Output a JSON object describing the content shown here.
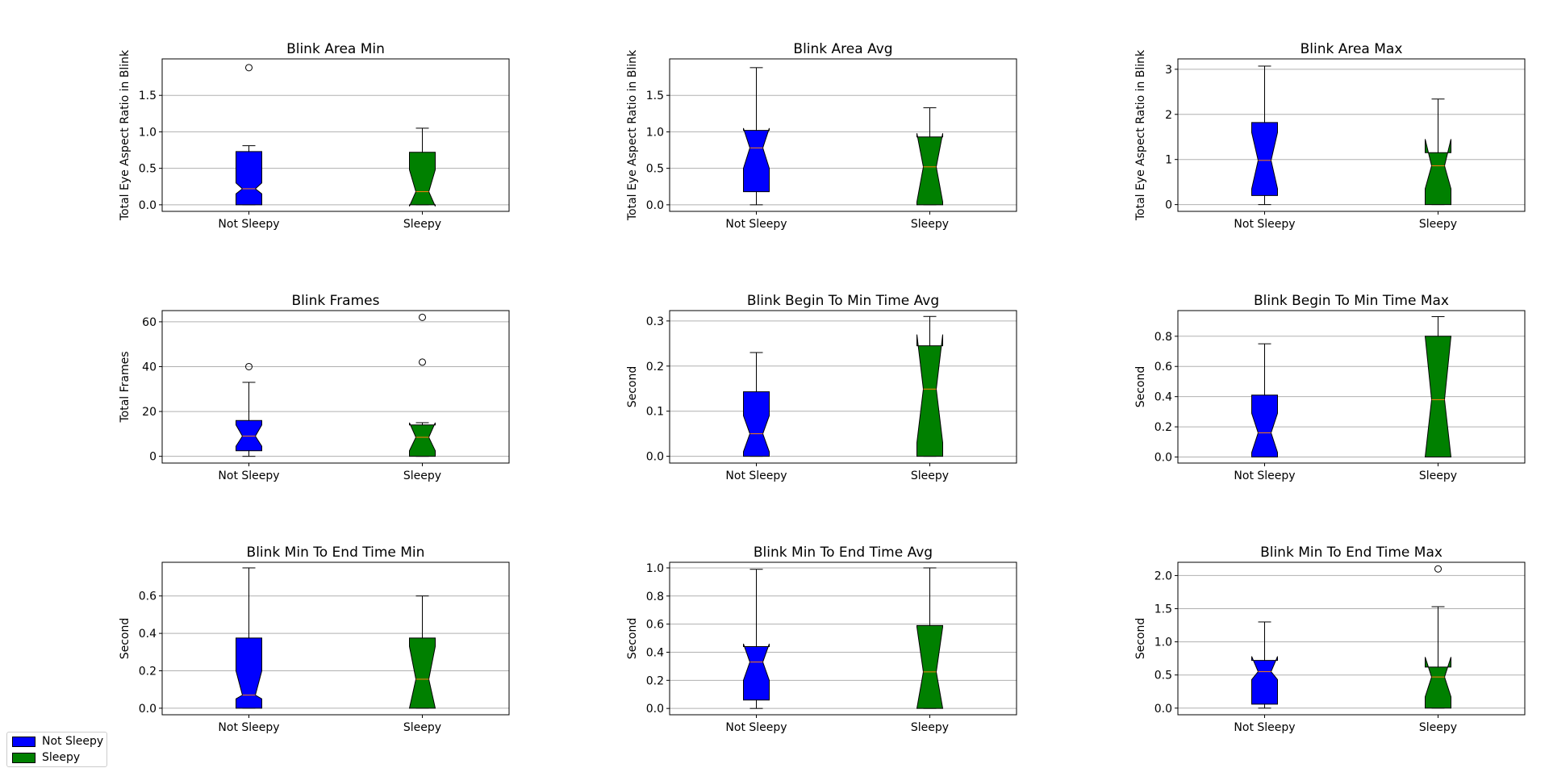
{
  "legend": {
    "items": [
      {
        "label": "Not Sleepy",
        "color": "#0000ff"
      },
      {
        "label": "Sleepy",
        "color": "#008000"
      }
    ]
  },
  "chart_data": [
    {
      "type": "boxplot",
      "title": "Blink Area Min",
      "ylabel": "Total Eye Aspect Ratio in Blink",
      "categories": [
        "Not Sleepy",
        "Sleepy"
      ],
      "colors": [
        "#0000ff",
        "#008000"
      ],
      "ylim": [
        -0.09,
        2.0
      ],
      "yticks": [
        0.0,
        0.5,
        1.0,
        1.5
      ],
      "ytick_labels": [
        "0.0",
        "0.5",
        "1.0",
        "1.5"
      ],
      "grid": "y",
      "boxes": [
        {
          "whislo": 0.0,
          "q1": 0.0,
          "med": 0.22,
          "q3": 0.73,
          "whishi": 0.81,
          "notch_lo": 0.15,
          "notch_hi": 0.3,
          "fliers": [
            1.88
          ]
        },
        {
          "whislo": 0.0,
          "q1": 0.0,
          "med": 0.18,
          "q3": 0.72,
          "whishi": 1.05,
          "notch_lo": -0.02,
          "notch_hi": 0.48,
          "fliers": []
        }
      ]
    },
    {
      "type": "boxplot",
      "title": "Blink Area Avg",
      "ylabel": "Total Eye Aspect Ratio in Blink",
      "categories": [
        "Not Sleepy",
        "Sleepy"
      ],
      "colors": [
        "#0000ff",
        "#008000"
      ],
      "ylim": [
        -0.09,
        2.0
      ],
      "yticks": [
        0.0,
        0.5,
        1.0,
        1.5
      ],
      "ytick_labels": [
        "0.0",
        "0.5",
        "1.0",
        "1.5"
      ],
      "grid": "y",
      "boxes": [
        {
          "whislo": 0.0,
          "q1": 0.18,
          "med": 0.78,
          "q3": 1.02,
          "whishi": 1.88,
          "notch_lo": 0.5,
          "notch_hi": 1.05,
          "fliers": []
        },
        {
          "whislo": 0.0,
          "q1": 0.0,
          "med": 0.52,
          "q3": 0.93,
          "whishi": 1.33,
          "notch_lo": 0.04,
          "notch_hi": 0.98,
          "fliers": []
        }
      ]
    },
    {
      "type": "boxplot",
      "title": "Blink Area Max",
      "ylabel": "Total Eye Aspect Ratio in Blink",
      "categories": [
        "Not Sleepy",
        "Sleepy"
      ],
      "colors": [
        "#0000ff",
        "#008000"
      ],
      "ylim": [
        -0.15,
        3.23
      ],
      "yticks": [
        0,
        1,
        2,
        3
      ],
      "ytick_labels": [
        "0",
        "1",
        "2",
        "3"
      ],
      "grid": "y",
      "boxes": [
        {
          "whislo": 0.0,
          "q1": 0.2,
          "med": 0.98,
          "q3": 1.82,
          "whishi": 3.07,
          "notch_lo": 0.35,
          "notch_hi": 1.6,
          "fliers": []
        },
        {
          "whislo": 0.0,
          "q1": 0.0,
          "med": 0.86,
          "q3": 1.15,
          "whishi": 2.34,
          "notch_lo": 0.35,
          "notch_hi": 1.45,
          "fliers": []
        }
      ]
    },
    {
      "type": "boxplot",
      "title": "Blink Frames",
      "ylabel": "Total Frames",
      "categories": [
        "Not Sleepy",
        "Sleepy"
      ],
      "colors": [
        "#0000ff",
        "#008000"
      ],
      "ylim": [
        -3,
        65
      ],
      "yticks": [
        0,
        20,
        40,
        60
      ],
      "ytick_labels": [
        "0",
        "20",
        "40",
        "60"
      ],
      "grid": "y",
      "boxes": [
        {
          "whislo": 0,
          "q1": 2.5,
          "med": 9,
          "q3": 16,
          "whishi": 33,
          "notch_lo": 4.5,
          "notch_hi": 14,
          "fliers": [
            40
          ]
        },
        {
          "whislo": 0,
          "q1": 0,
          "med": 8.5,
          "q3": 14,
          "whishi": 15,
          "notch_lo": 2.5,
          "notch_hi": 15,
          "fliers": [
            62,
            42
          ]
        }
      ]
    },
    {
      "type": "boxplot",
      "title": "Blink Begin To Min Time Avg",
      "ylabel": "Second",
      "categories": [
        "Not Sleepy",
        "Sleepy"
      ],
      "colors": [
        "#0000ff",
        "#008000"
      ],
      "ylim": [
        -0.015,
        0.323
      ],
      "yticks": [
        0.0,
        0.1,
        0.2,
        0.3
      ],
      "ytick_labels": [
        "0.0",
        "0.1",
        "0.2",
        "0.3"
      ],
      "grid": "y",
      "boxes": [
        {
          "whislo": 0.0,
          "q1": 0.0,
          "med": 0.05,
          "q3": 0.143,
          "whishi": 0.23,
          "notch_lo": 0.01,
          "notch_hi": 0.09,
          "fliers": []
        },
        {
          "whislo": 0.0,
          "q1": 0.0,
          "med": 0.149,
          "q3": 0.245,
          "whishi": 0.31,
          "notch_lo": 0.03,
          "notch_hi": 0.27,
          "fliers": []
        }
      ]
    },
    {
      "type": "boxplot",
      "title": "Blink Begin To Min Time Max",
      "ylabel": "Second",
      "categories": [
        "Not Sleepy",
        "Sleepy"
      ],
      "colors": [
        "#0000ff",
        "#008000"
      ],
      "ylim": [
        -0.04,
        0.97
      ],
      "yticks": [
        0.0,
        0.2,
        0.4,
        0.6,
        0.8
      ],
      "ytick_labels": [
        "0.0",
        "0.2",
        "0.4",
        "0.6",
        "0.8"
      ],
      "grid": "y",
      "boxes": [
        {
          "whislo": 0.0,
          "q1": 0.0,
          "med": 0.16,
          "q3": 0.41,
          "whishi": 0.75,
          "notch_lo": 0.03,
          "notch_hi": 0.29,
          "fliers": []
        },
        {
          "whislo": 0.0,
          "q1": 0.0,
          "med": 0.38,
          "q3": 0.8,
          "whishi": 0.93,
          "notch_lo": 0.0,
          "notch_hi": 0.8,
          "fliers": []
        }
      ]
    },
    {
      "type": "boxplot",
      "title": "Blink Min To End Time Min",
      "ylabel": "Second",
      "categories": [
        "Not Sleepy",
        "Sleepy"
      ],
      "colors": [
        "#0000ff",
        "#008000"
      ],
      "ylim": [
        -0.035,
        0.78
      ],
      "yticks": [
        0.0,
        0.2,
        0.4,
        0.6
      ],
      "ytick_labels": [
        "0.0",
        "0.2",
        "0.4",
        "0.6"
      ],
      "grid": "y",
      "boxes": [
        {
          "whislo": 0.0,
          "q1": 0.0,
          "med": 0.07,
          "q3": 0.375,
          "whishi": 0.75,
          "notch_lo": 0.05,
          "notch_hi": 0.2,
          "fliers": []
        },
        {
          "whislo": 0.0,
          "q1": 0.0,
          "med": 0.155,
          "q3": 0.375,
          "whishi": 0.6,
          "notch_lo": 0.0,
          "notch_hi": 0.33,
          "fliers": []
        }
      ]
    },
    {
      "type": "boxplot",
      "title": "Blink Min To End Time Avg",
      "ylabel": "Second",
      "categories": [
        "Not Sleepy",
        "Sleepy"
      ],
      "colors": [
        "#0000ff",
        "#008000"
      ],
      "ylim": [
        -0.045,
        1.04
      ],
      "yticks": [
        0.0,
        0.2,
        0.4,
        0.6,
        0.8,
        1.0
      ],
      "ytick_labels": [
        "0.0",
        "0.2",
        "0.4",
        "0.6",
        "0.8",
        "1.0"
      ],
      "grid": "y",
      "boxes": [
        {
          "whislo": 0.0,
          "q1": 0.06,
          "med": 0.33,
          "q3": 0.44,
          "whishi": 0.99,
          "notch_lo": 0.2,
          "notch_hi": 0.46,
          "fliers": []
        },
        {
          "whislo": 0.0,
          "q1": 0.0,
          "med": 0.26,
          "q3": 0.59,
          "whishi": 1.0,
          "notch_lo": 0.0,
          "notch_hi": 0.58,
          "fliers": []
        }
      ]
    },
    {
      "type": "boxplot",
      "title": "Blink Min To End Time Max",
      "ylabel": "Second",
      "categories": [
        "Not Sleepy",
        "Sleepy"
      ],
      "colors": [
        "#0000ff",
        "#008000"
      ],
      "ylim": [
        -0.1,
        2.2
      ],
      "yticks": [
        0.0,
        0.5,
        1.0,
        1.5,
        2.0
      ],
      "ytick_labels": [
        "0.0",
        "0.5",
        "1.0",
        "1.5",
        "2.0"
      ],
      "grid": "y",
      "boxes": [
        {
          "whislo": 0.0,
          "q1": 0.06,
          "med": 0.55,
          "q3": 0.72,
          "whishi": 1.3,
          "notch_lo": 0.43,
          "notch_hi": 0.78,
          "fliers": []
        },
        {
          "whislo": 0.0,
          "q1": 0.0,
          "med": 0.47,
          "q3": 0.62,
          "whishi": 1.53,
          "notch_lo": 0.17,
          "notch_hi": 0.77,
          "fliers": [
            2.1
          ]
        }
      ]
    }
  ]
}
